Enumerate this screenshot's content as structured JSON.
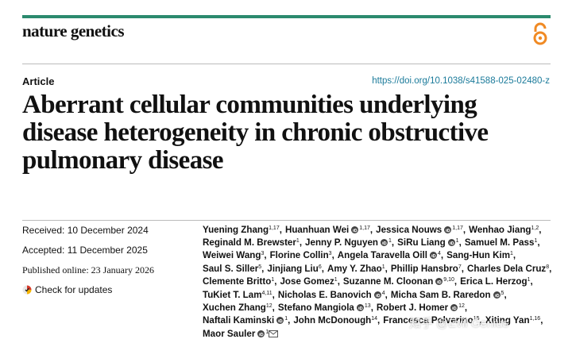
{
  "journal": "nature genetics",
  "article_type": "Article",
  "doi": "https://doi.org/10.1038/s41588-025-02480-z",
  "title_lines": [
    "Aberrant cellular communities underlying",
    "disease heterogeneity in chronic obstructive",
    "pulmonary disease"
  ],
  "dates": {
    "received": "Received: 10 December 2024",
    "accepted": "Accepted: 11 December 2025",
    "published": "Published online: 23 January 2026"
  },
  "check_updates": "Check for updates",
  "authors": {
    "separator": ",",
    "lines": [
      [
        {
          "name": "Yuening Zhang",
          "affil": "1,17",
          "orcid": false
        },
        {
          "name": "Huanhuan Wei",
          "affil": "1,17",
          "orcid": true
        },
        {
          "name": "Jessica Nouws",
          "affil": "1,17",
          "orcid": true
        },
        {
          "name": "Wenhao Jiang",
          "affil": "1,2",
          "orcid": false
        }
      ],
      [
        {
          "name": "Reginald M. Brewster",
          "affil": "1",
          "orcid": false
        },
        {
          "name": "Jenny P. Nguyen",
          "affil": "1",
          "orcid": true
        },
        {
          "name": "SiRu Liang",
          "affil": "1",
          "orcid": true
        },
        {
          "name": "Samuel M. Pass",
          "affil": "1",
          "orcid": false
        }
      ],
      [
        {
          "name": "Weiwei Wang",
          "affil": "3",
          "orcid": false
        },
        {
          "name": "Florine Collin",
          "affil": "3",
          "orcid": false
        },
        {
          "name": "Angela Taravella Oill",
          "affil": "4",
          "orcid": true
        },
        {
          "name": "Sang-Hun Kim",
          "affil": "1",
          "orcid": false
        }
      ],
      [
        {
          "name": "Saul S. Siller",
          "affil": "5",
          "orcid": false
        },
        {
          "name": "Jinjiang Liu",
          "affil": "6",
          "orcid": false
        },
        {
          "name": "Amy Y. Zhao",
          "affil": "1",
          "orcid": false
        },
        {
          "name": "Phillip Hansbro",
          "affil": "7",
          "orcid": false
        },
        {
          "name": "Charles Dela Cruz",
          "affil": "8",
          "orcid": false
        }
      ],
      [
        {
          "name": "Clemente Britto",
          "affil": "1",
          "orcid": false
        },
        {
          "name": "Jose Gomez",
          "affil": "1",
          "orcid": false
        },
        {
          "name": "Suzanne M. Cloonan",
          "affil": "9,10",
          "orcid": true
        },
        {
          "name": "Erica L. Herzog",
          "affil": "1",
          "orcid": false
        }
      ],
      [
        {
          "name": "TuKiet T. Lam",
          "affil": "4,11",
          "orcid": false
        },
        {
          "name": "Nicholas E. Banovich",
          "affil": "4",
          "orcid": true
        },
        {
          "name": "Micha Sam B. Raredon",
          "affil": "5",
          "orcid": true
        }
      ],
      [
        {
          "name": "Xuchen Zhang",
          "affil": "12",
          "orcid": false
        },
        {
          "name": "Stefano Mangiola",
          "affil": "13",
          "orcid": true
        },
        {
          "name": "Robert J. Homer",
          "affil": "12",
          "orcid": true
        }
      ],
      [
        {
          "name": "Naftali Kaminski",
          "affil": "1",
          "orcid": true
        },
        {
          "name": "John McDonough",
          "affil": "14",
          "orcid": false
        },
        {
          "name": "Francesca Polverino",
          "affil": "15",
          "orcid": false
        },
        {
          "name": "Xiting Yan",
          "affil": "1,16",
          "orcid": false
        }
      ],
      [
        {
          "name": "Maor Sauler",
          "affil": "1",
          "orcid": true,
          "corresponding": true
        }
      ]
    ]
  },
  "watermark": "知乎 @Evil Genius"
}
